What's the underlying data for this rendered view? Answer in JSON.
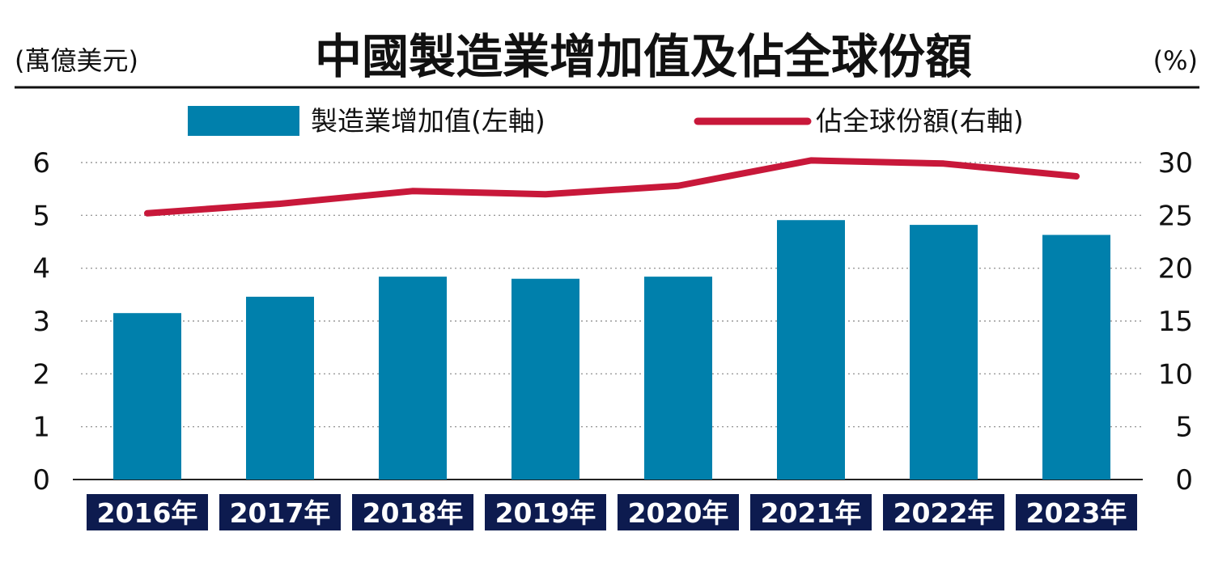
{
  "chart_data": {
    "type": "bar",
    "title": "中國製造業增加值及佔全球份額",
    "left_unit": "(萬億美元)",
    "right_unit": "(%)",
    "categories": [
      "2016年",
      "2017年",
      "2018年",
      "2019年",
      "2020年",
      "2021年",
      "2022年",
      "2023年"
    ],
    "series": [
      {
        "name": "製造業增加值(左軸)",
        "type": "bar",
        "axis": "left",
        "color": "#0080ac",
        "values": [
          3.15,
          3.46,
          3.84,
          3.8,
          3.84,
          4.91,
          4.82,
          4.63
        ]
      },
      {
        "name": "佔全球份額(右軸)",
        "type": "line",
        "axis": "right",
        "color": "#c8183a",
        "values": [
          25.2,
          26.1,
          27.3,
          27.0,
          27.8,
          30.2,
          29.9,
          28.7
        ]
      }
    ],
    "y_left": {
      "range": [
        0,
        6
      ],
      "ticks": [
        "0",
        "1",
        "2",
        "3",
        "4",
        "5",
        "6"
      ]
    },
    "y_right": {
      "range": [
        0,
        30
      ],
      "ticks": [
        "0",
        "5",
        "10",
        "15",
        "20",
        "25",
        "30"
      ]
    },
    "grid": true,
    "legend_position": "top",
    "category_label_bg": "#0d1b4f",
    "category_label_color": "#ffffff"
  }
}
